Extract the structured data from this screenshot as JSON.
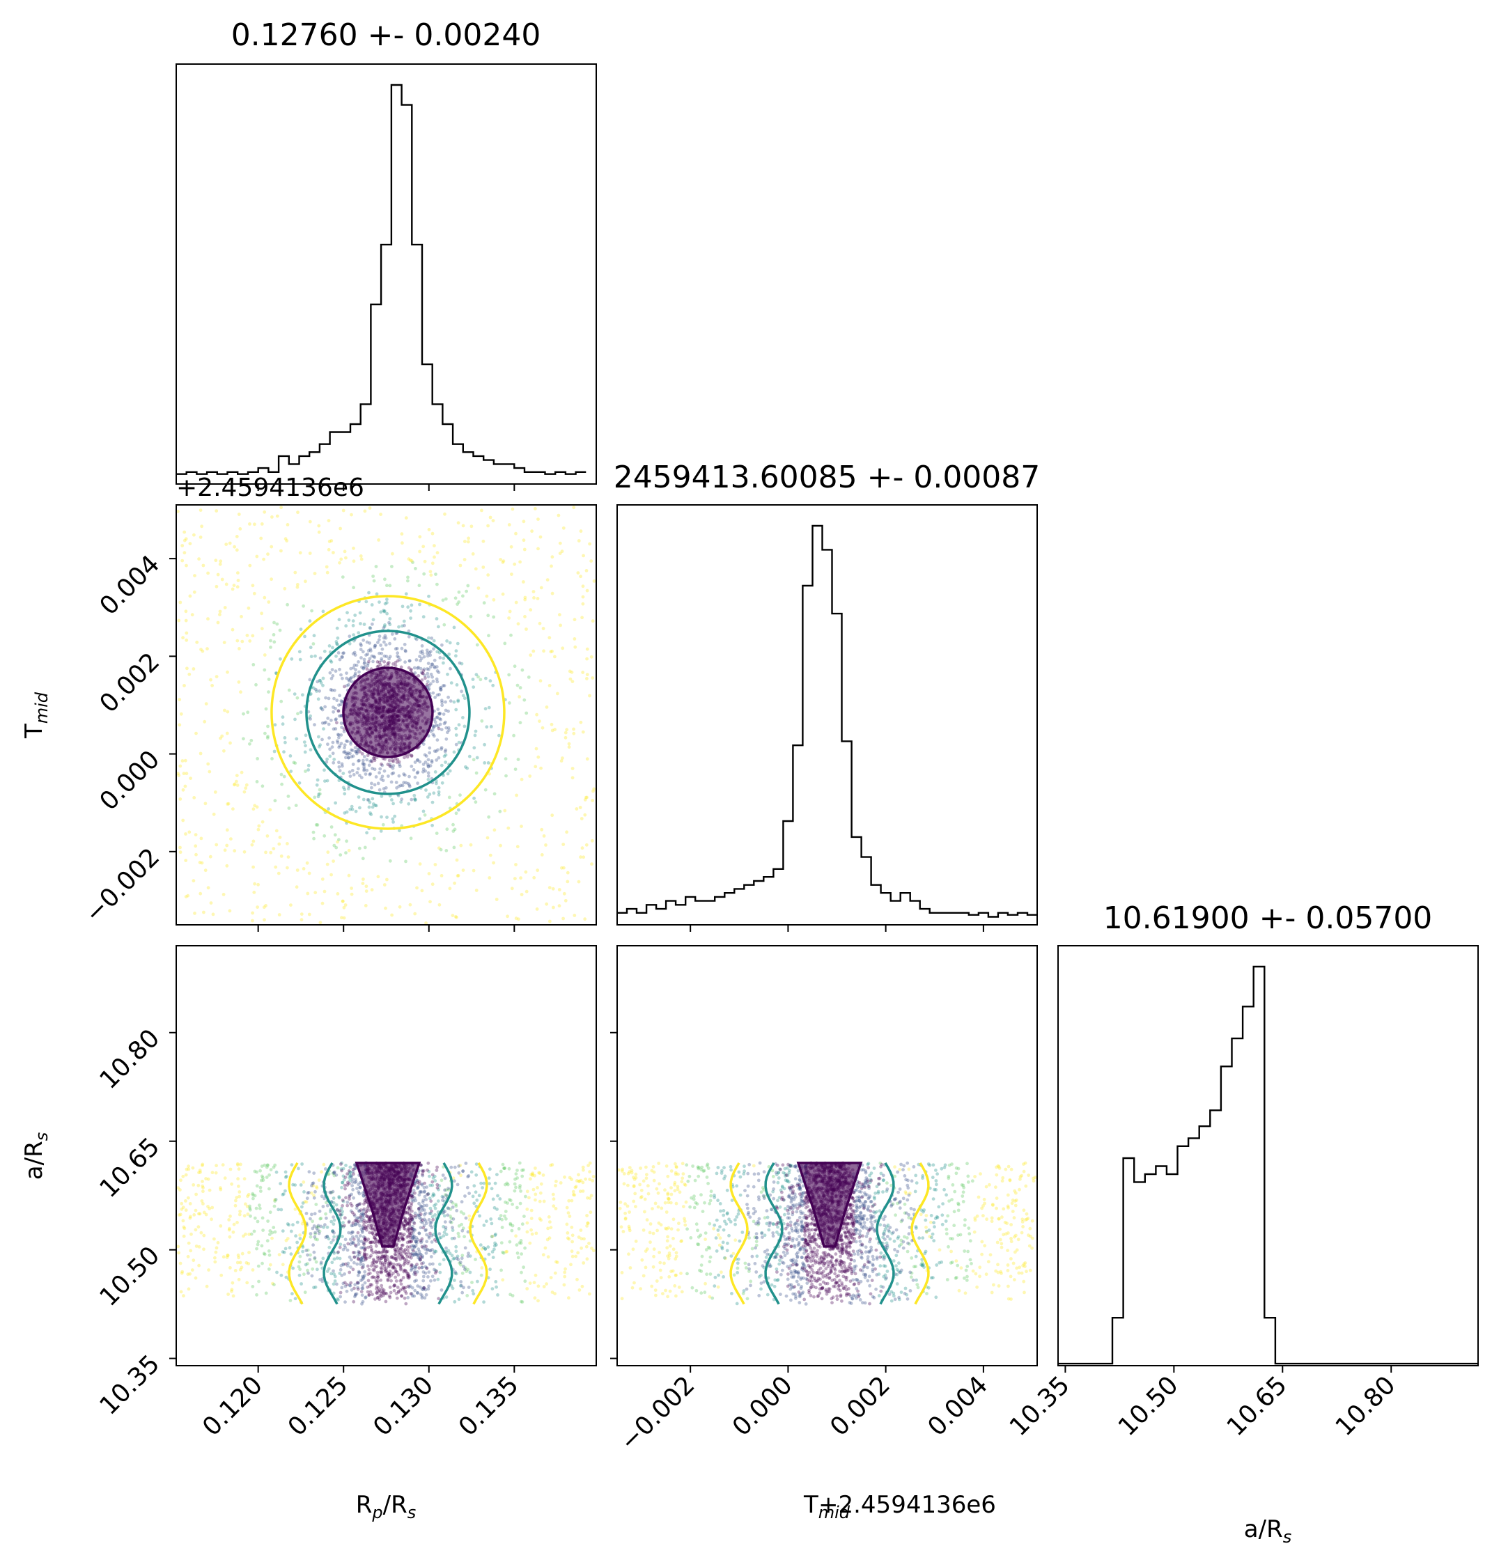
{
  "chart_data": {
    "type": "scatter",
    "kind": "corner-plot",
    "parameters": [
      {
        "id": "rp",
        "label_base": "R",
        "label_sub": "p",
        "label_rest": "/R",
        "label_sub2": "s",
        "range": [
          0.1152,
          0.1398
        ],
        "ticks": [
          0.12,
          0.125,
          0.13,
          0.135
        ],
        "tick_labels": [
          "0.120",
          "0.125",
          "0.130",
          "0.135"
        ],
        "mean": 0.1276,
        "sigma": 0.0024
      },
      {
        "id": "tmid",
        "label_base": "T",
        "label_sub": "mid",
        "offset_text": "+2.4594136e6",
        "range": [
          -0.0035,
          0.0051
        ],
        "ticks": [
          -0.002,
          0.0,
          0.002,
          0.004
        ],
        "tick_labels": [
          "−0.002",
          "0.000",
          "0.002",
          "0.004"
        ],
        "mean": 0.00085,
        "sigma": 0.00087
      },
      {
        "id": "ars",
        "label_base": "a/R",
        "label_sub": "s",
        "range": [
          10.34,
          10.92
        ],
        "ticks": [
          10.35,
          10.5,
          10.65,
          10.8
        ],
        "tick_labels": [
          "10.35",
          "10.50",
          "10.65",
          "10.80"
        ],
        "mean": 10.619,
        "sigma": 0.057
      }
    ],
    "titles": [
      "0.12760 +- 0.00240",
      "2459413.60085 +- 0.00087",
      "10.61900 +- 0.05700"
    ],
    "x_axis_labels": [
      "R_p/R_s",
      "T_mid +2.4594136e6",
      "a/R_s"
    ],
    "y_axis_labels": [
      "T_mid",
      "a/R_s"
    ],
    "offset_labels": [
      "+2.4594136e6",
      "T",
      "mid",
      "+2.4594136e6"
    ],
    "hist_rp": {
      "bins": [
        0.1152,
        0.1158,
        0.1164,
        0.117,
        0.1176,
        0.1182,
        0.1188,
        0.1194,
        0.12,
        0.1206,
        0.1212,
        0.1218,
        0.1224,
        0.123,
        0.1236,
        0.1242,
        0.1248,
        0.1254,
        0.126,
        0.1266,
        0.1272,
        0.1278,
        0.1284,
        0.129,
        0.1296,
        0.1302,
        0.1308,
        0.1314,
        0.132,
        0.1326,
        0.1332,
        0.1338,
        0.1344,
        0.135,
        0.1356,
        0.1362,
        0.1368,
        0.1374,
        0.138,
        0.1386,
        0.1392
      ],
      "counts": [
        2.5,
        3,
        2.5,
        3,
        2.5,
        3,
        2.5,
        3,
        4,
        3,
        7,
        5,
        7,
        8,
        10,
        13,
        13,
        15,
        20,
        45,
        60,
        100,
        95,
        60,
        30,
        20,
        15,
        10,
        8,
        7,
        6,
        5,
        5,
        4,
        3,
        3,
        2.5,
        3,
        2.5,
        3
      ]
    },
    "hist_tmid": {
      "bins": [
        -0.0035,
        -0.0033,
        -0.0031,
        -0.0029,
        -0.0027,
        -0.0025,
        -0.0023,
        -0.0021,
        -0.0019,
        -0.0017,
        -0.0015,
        -0.0013,
        -0.0011,
        -0.0009,
        -0.0007,
        -0.0005,
        -0.0003,
        -0.0001,
        0.0001,
        0.0003,
        0.0005,
        0.0007,
        0.0009,
        0.0011,
        0.0013,
        0.0015,
        0.0017,
        0.0019,
        0.0021,
        0.0023,
        0.0025,
        0.0027,
        0.0029,
        0.0031,
        0.0033,
        0.0035,
        0.0037,
        0.0039,
        0.0041,
        0.0043,
        0.0045,
        0.0047,
        0.0049,
        0.0051
      ],
      "counts": [
        3,
        4,
        3,
        5,
        4,
        6,
        5,
        7,
        6,
        6,
        7,
        8,
        9,
        10,
        11,
        12,
        14,
        26,
        45,
        85,
        100,
        94,
        78,
        46,
        22,
        17,
        10,
        8,
        6,
        8,
        6,
        4,
        3,
        3,
        3,
        3,
        2.5,
        3,
        2,
        3,
        2.5,
        3,
        2.5
      ]
    },
    "hist_ars": {
      "bins": [
        10.34,
        10.355,
        10.37,
        10.385,
        10.4,
        10.415,
        10.43,
        10.445,
        10.46,
        10.475,
        10.49,
        10.505,
        10.52,
        10.535,
        10.55,
        10.565,
        10.58,
        10.595,
        10.61,
        10.625,
        10.64,
        10.655,
        10.67,
        10.685,
        10.7,
        10.715,
        10.73,
        10.745,
        10.76,
        10.775,
        10.79,
        10.805,
        10.82,
        10.835,
        10.85,
        10.865,
        10.88,
        10.895,
        10.92
      ],
      "counts": [
        0.5,
        0.5,
        0.5,
        0.5,
        0.5,
        12,
        52,
        46,
        48,
        50,
        48,
        55,
        57,
        60,
        64,
        75,
        82,
        90,
        100,
        12,
        0.5,
        0.5,
        0.5,
        0.5,
        0.5,
        0.5,
        0.5,
        0.5,
        0.5,
        0.5,
        0.5,
        0.5,
        0.5,
        0.5,
        0.5,
        0.5,
        0.5,
        0.5
      ]
    },
    "contour_colors": [
      "#fde725",
      "#21918c",
      "#440154"
    ],
    "grid": false
  }
}
